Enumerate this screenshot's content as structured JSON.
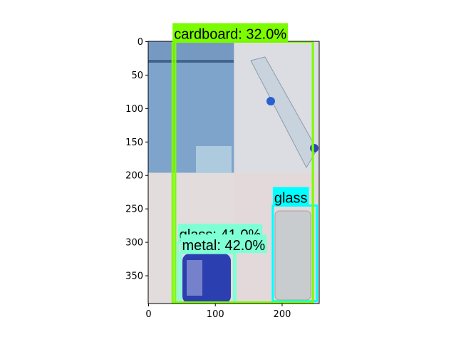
{
  "figure": {
    "x_ticks": [
      {
        "value": 0,
        "label": "0"
      },
      {
        "value": 100,
        "label": "100"
      },
      {
        "value": 200,
        "label": "200"
      }
    ],
    "y_ticks": [
      {
        "value": 0,
        "label": "0"
      },
      {
        "value": 50,
        "label": "50"
      },
      {
        "value": 100,
        "label": "100"
      },
      {
        "value": 150,
        "label": "150"
      },
      {
        "value": 200,
        "label": "200"
      },
      {
        "value": 250,
        "label": "250"
      },
      {
        "value": 300,
        "label": "300"
      },
      {
        "value": 350,
        "label": "350"
      }
    ],
    "x_range": [
      -0.5,
      255.5
    ],
    "y_range": [
      391.5,
      -0.5
    ]
  },
  "image_tiles": [
    {
      "name": "tile-top-left",
      "x0": 0,
      "y0": 0,
      "x1": 128,
      "y1": 196,
      "color": "#7fa4cb"
    },
    {
      "name": "tile-top-right",
      "x0": 128,
      "y0": 0,
      "x1": 256,
      "y1": 196,
      "color": "#dcdde2"
    },
    {
      "name": "tile-bottom-left",
      "x0": 0,
      "y0": 196,
      "x1": 128,
      "y1": 392,
      "color": "#e2dcdc"
    },
    {
      "name": "tile-bottom-right",
      "x0": 128,
      "y0": 196,
      "x1": 256,
      "y1": 392,
      "color": "#e3d9da"
    }
  ],
  "detections": [
    {
      "label": "glass",
      "color": "#00ffff",
      "x0": 186,
      "y0": 245,
      "x1": 252,
      "y1": 388
    },
    {
      "label": "glass: 41.0%",
      "color": "#7fffd4",
      "x0": 44,
      "y0": 300,
      "x1": 130,
      "y1": 392
    },
    {
      "label": "metal: 42.0%",
      "color": "#7fffd4",
      "x0": 48,
      "y0": 316,
      "x1": 128,
      "y1": 392
    },
    {
      "label": "cardboard: 32.0%",
      "color": "#7cfc00",
      "x0": 36,
      "y0": 0,
      "x1": 246,
      "y1": 390
    },
    {
      "label": "",
      "color": "#7cfc00",
      "x0": 40,
      "y0": 0,
      "x1": 246,
      "y1": 390
    }
  ]
}
